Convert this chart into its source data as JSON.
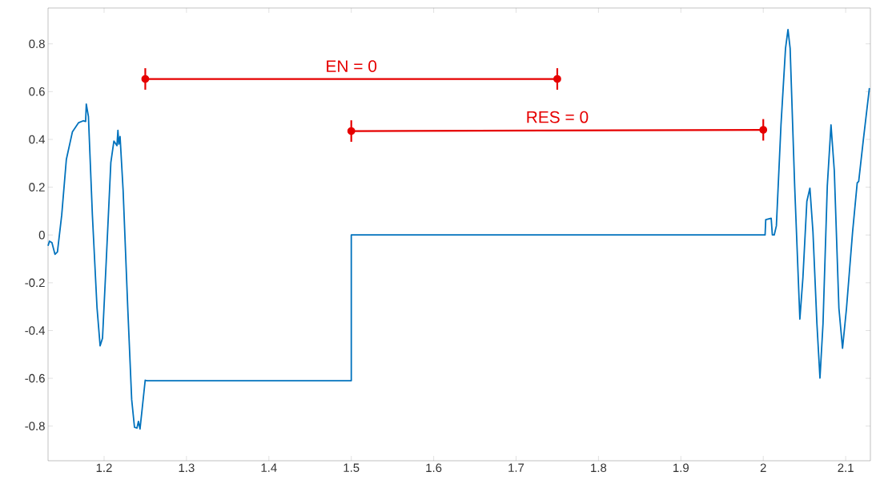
{
  "chart_data": {
    "type": "line",
    "xlim": [
      1.132,
      2.13
    ],
    "ylim": [
      -0.945,
      0.95
    ],
    "xticks": [
      1.2,
      1.3,
      1.4,
      1.5,
      1.6,
      1.7,
      1.8,
      1.9,
      2,
      2.1
    ],
    "yticks": [
      -0.8,
      -0.6,
      -0.4,
      -0.2,
      0,
      0.2,
      0.4,
      0.6,
      0.8
    ],
    "series": [
      {
        "color": "#0072bd",
        "marker": "none",
        "x": [
          1.132,
          1.1337,
          1.1367,
          1.1404,
          1.1434,
          1.1486,
          1.1542,
          1.1616,
          1.1691,
          1.1747,
          1.1776,
          1.1784,
          1.181,
          1.1858,
          1.1914,
          1.1952,
          1.1981,
          1.2026,
          1.2082,
          1.2119,
          1.2145,
          1.2156,
          1.2168,
          1.2179,
          1.2194,
          1.2231,
          1.2287,
          1.2335,
          1.2369,
          1.2399,
          1.2417,
          1.2436,
          1.2462,
          1.2499,
          1.252,
          1.5,
          1.5,
          2.0,
          2.0022,
          2.003,
          2.0096,
          2.011,
          2.0133,
          2.0159,
          2.0215,
          2.027,
          2.03,
          2.0326,
          2.0381,
          2.0444,
          2.0481,
          2.0529,
          2.0566,
          2.0603,
          2.0651,
          2.0688,
          2.0725,
          2.0777,
          2.0822,
          2.0862,
          2.0918,
          2.0962,
          2.101,
          2.1084,
          2.114,
          2.1158,
          2.1214,
          2.1288
        ],
        "values": [
          -0.045,
          -0.026,
          -0.032,
          -0.081,
          -0.071,
          0.084,
          0.316,
          0.432,
          0.47,
          0.478,
          0.475,
          0.548,
          0.496,
          0.084,
          -0.303,
          -0.464,
          -0.432,
          -0.11,
          0.303,
          0.393,
          0.38,
          0.374,
          0.438,
          0.38,
          0.412,
          0.187,
          -0.303,
          -0.689,
          -0.805,
          -0.808,
          -0.78,
          -0.812,
          -0.728,
          -0.608,
          -0.61,
          -0.61,
          0,
          0,
          0,
          0.064,
          0.07,
          0,
          0,
          0.038,
          0.461,
          0.781,
          0.86,
          0.781,
          0.205,
          -0.352,
          -0.179,
          0.141,
          0.196,
          0.013,
          -0.371,
          -0.599,
          -0.371,
          0.205,
          0.461,
          0.269,
          -0.307,
          -0.474,
          -0.307,
          0.013,
          0.218,
          0.224,
          0.397,
          0.615
        ]
      },
      {
        "name": "EN = 0",
        "color": "#e60000",
        "marker": "circle",
        "x": [
          1.25,
          1.75
        ],
        "values": [
          0.653,
          0.653
        ],
        "errors": [
          0.045,
          0.045
        ]
      },
      {
        "name": "RES = 0",
        "color": "#e60000",
        "marker": "circle",
        "x": [
          1.5,
          2.0
        ],
        "values": [
          0.435,
          0.44
        ],
        "errors": [
          0.045,
          0.045
        ]
      }
    ]
  }
}
